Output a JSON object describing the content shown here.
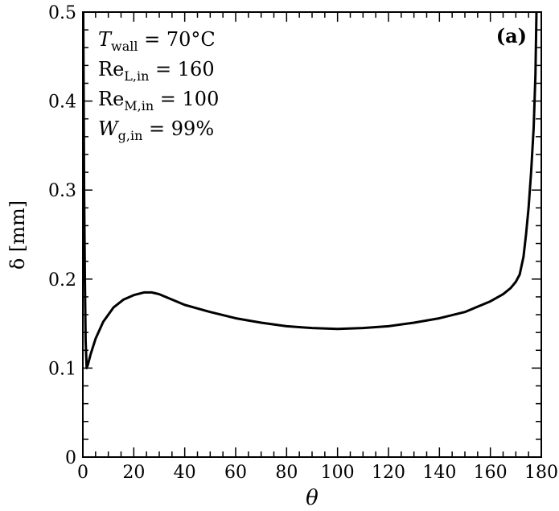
{
  "chart_data": {
    "type": "line",
    "title": "",
    "xlabel": "θ",
    "ylabel": "δ [mm]",
    "xlim": [
      0,
      180
    ],
    "ylim": [
      0,
      0.5
    ],
    "xticks": [
      0,
      20,
      40,
      60,
      80,
      100,
      120,
      140,
      160,
      180
    ],
    "xtick_labels": [
      "0",
      "20",
      "40",
      "60",
      "80",
      "100",
      "120",
      "140",
      "160",
      "180"
    ],
    "yticks": [
      0,
      0.1,
      0.2,
      0.3,
      0.4,
      0.5
    ],
    "ytick_labels": [
      "0",
      "0.1",
      "0.2",
      "0.3",
      "0.4",
      "0.5"
    ],
    "x_minor_step": 5,
    "y_minor_step": 0.02,
    "grid": false,
    "panel_label": "(a)",
    "annotations": [
      {
        "main": "T",
        "sub": "wall",
        "rest": " = 70°C"
      },
      {
        "main": "Re",
        "sub": "L,in",
        "rest": " = 160"
      },
      {
        "main": "Re",
        "sub": "M,in",
        "rest": " = 100"
      },
      {
        "main": "W",
        "sub": "g,in",
        "rest": " = 99%"
      }
    ],
    "series": [
      {
        "name": "δ",
        "color": "#000000",
        "x": [
          0.15,
          0.3,
          0.5,
          0.8,
          1.1,
          1.5,
          2,
          3,
          5,
          8,
          12,
          16,
          20,
          24,
          27,
          30,
          35,
          40,
          50,
          60,
          70,
          80,
          90,
          100,
          110,
          120,
          130,
          140,
          150,
          160,
          165,
          168,
          170,
          171.5,
          173,
          174,
          175,
          176,
          177,
          177.7,
          178.1
        ],
        "y": [
          0.5,
          0.42,
          0.3,
          0.2,
          0.13,
          0.1,
          0.104,
          0.115,
          0.133,
          0.152,
          0.168,
          0.177,
          0.182,
          0.185,
          0.185,
          0.183,
          0.177,
          0.171,
          0.163,
          0.156,
          0.151,
          0.147,
          0.145,
          0.144,
          0.145,
          0.147,
          0.151,
          0.156,
          0.163,
          0.175,
          0.183,
          0.19,
          0.197,
          0.205,
          0.225,
          0.25,
          0.28,
          0.32,
          0.37,
          0.43,
          0.5
        ]
      }
    ]
  }
}
